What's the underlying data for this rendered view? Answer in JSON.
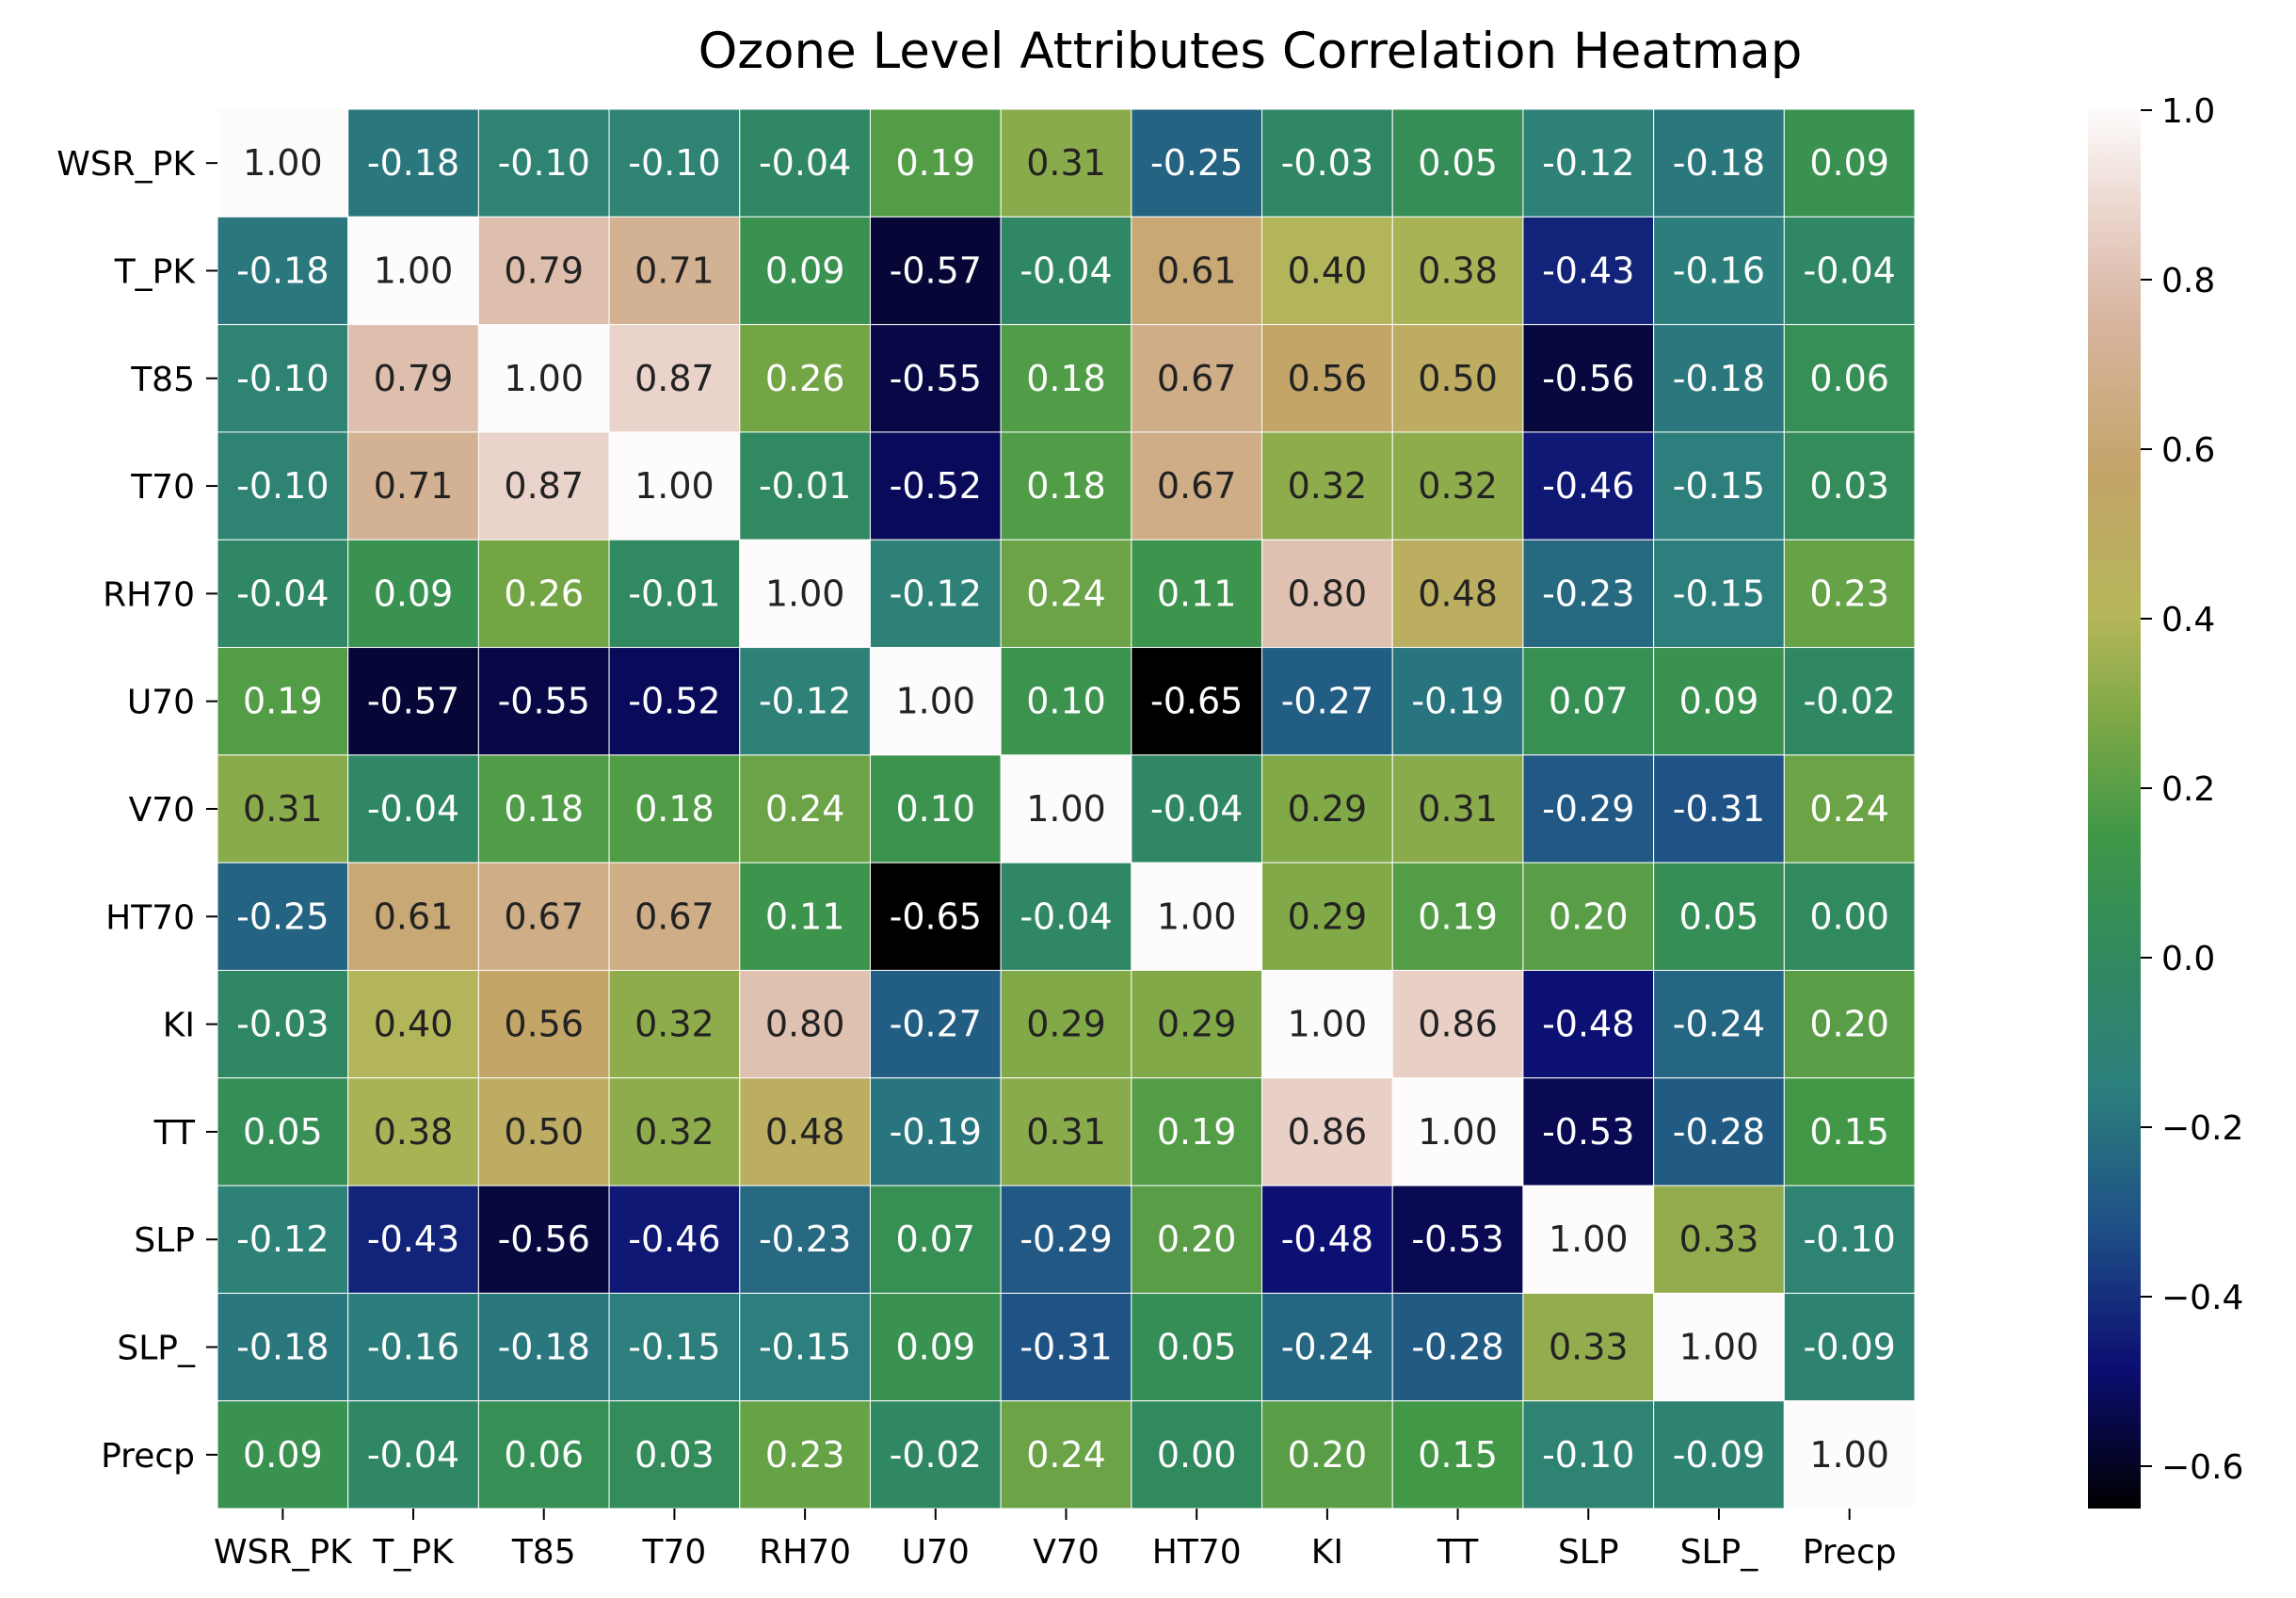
{
  "chart_data": {
    "type": "heatmap",
    "title": "Ozone Level Attributes Correlation Heatmap",
    "rows": [
      "WSR_PK",
      "T_PK",
      "T85",
      "T70",
      "RH70",
      "U70",
      "V70",
      "HT70",
      "KI",
      "TT",
      "SLP",
      "SLP_",
      "Precp"
    ],
    "columns": [
      "WSR_PK",
      "T_PK",
      "T85",
      "T70",
      "RH70",
      "U70",
      "V70",
      "HT70",
      "KI",
      "TT",
      "SLP",
      "SLP_",
      "Precp"
    ],
    "values": [
      [
        1.0,
        -0.18,
        -0.1,
        -0.1,
        -0.04,
        0.19,
        0.31,
        -0.25,
        -0.03,
        0.05,
        -0.12,
        -0.18,
        0.09
      ],
      [
        -0.18,
        1.0,
        0.79,
        0.71,
        0.09,
        -0.57,
        -0.04,
        0.61,
        0.4,
        0.38,
        -0.43,
        -0.16,
        -0.04
      ],
      [
        -0.1,
        0.79,
        1.0,
        0.87,
        0.26,
        -0.55,
        0.18,
        0.67,
        0.56,
        0.5,
        -0.56,
        -0.18,
        0.06
      ],
      [
        -0.1,
        0.71,
        0.87,
        1.0,
        -0.01,
        -0.52,
        0.18,
        0.67,
        0.32,
        0.32,
        -0.46,
        -0.15,
        0.03
      ],
      [
        -0.04,
        0.09,
        0.26,
        -0.01,
        1.0,
        -0.12,
        0.24,
        0.11,
        0.8,
        0.48,
        -0.23,
        -0.15,
        0.23
      ],
      [
        0.19,
        -0.57,
        -0.55,
        -0.52,
        -0.12,
        1.0,
        0.1,
        -0.65,
        -0.27,
        -0.19,
        0.07,
        0.09,
        -0.02
      ],
      [
        0.31,
        -0.04,
        0.18,
        0.18,
        0.24,
        0.1,
        1.0,
        -0.04,
        0.29,
        0.31,
        -0.29,
        -0.31,
        0.24
      ],
      [
        -0.25,
        0.61,
        0.67,
        0.67,
        0.11,
        -0.65,
        -0.04,
        1.0,
        0.29,
        0.19,
        0.2,
        0.05,
        -0.0
      ],
      [
        -0.03,
        0.4,
        0.56,
        0.32,
        0.8,
        -0.27,
        0.29,
        0.29,
        1.0,
        0.86,
        -0.48,
        -0.24,
        0.2
      ],
      [
        0.05,
        0.38,
        0.5,
        0.32,
        0.48,
        -0.19,
        0.31,
        0.19,
        0.86,
        1.0,
        -0.53,
        -0.28,
        0.15
      ],
      [
        -0.12,
        -0.43,
        -0.56,
        -0.46,
        -0.23,
        0.07,
        -0.29,
        0.2,
        -0.48,
        -0.53,
        1.0,
        0.33,
        -0.1
      ],
      [
        -0.18,
        -0.16,
        -0.18,
        -0.15,
        -0.15,
        0.09,
        -0.31,
        0.05,
        -0.24,
        -0.28,
        0.33,
        1.0,
        -0.09
      ],
      [
        0.09,
        -0.04,
        0.06,
        0.03,
        0.23,
        -0.02,
        0.24,
        -0.0,
        0.2,
        0.15,
        -0.1,
        -0.09,
        1.0
      ]
    ],
    "value_format": "2 decimals",
    "colormap": "gist_earth",
    "colormap_stops": [
      {
        "v": 0.0,
        "c": "#000000"
      },
      {
        "v": 0.1,
        "c": "#0c0e72"
      },
      {
        "v": 0.2,
        "c": "#1e4f86"
      },
      {
        "v": 0.3,
        "c": "#2c7f7d"
      },
      {
        "v": 0.4,
        "c": "#318a5c"
      },
      {
        "v": 0.48,
        "c": "#3f9748"
      },
      {
        "v": 0.56,
        "c": "#7aa745"
      },
      {
        "v": 0.64,
        "c": "#b5b65a"
      },
      {
        "v": 0.74,
        "c": "#c3a468"
      },
      {
        "v": 0.85,
        "c": "#d8b5a0"
      },
      {
        "v": 0.92,
        "c": "#e9d2c9"
      },
      {
        "v": 1.0,
        "c": "#fdfbfb"
      }
    ],
    "vmin": -0.65,
    "vmax": 1.0,
    "colorbar_ticks": [
      1.0,
      0.8,
      0.6,
      0.4,
      0.2,
      0.0,
      -0.2,
      -0.4,
      -0.6
    ],
    "colorbar_tick_labels": [
      "1.0",
      "0.8",
      "0.6",
      "0.4",
      "0.2",
      "0.0",
      "−0.2",
      "−0.4",
      "−0.6"
    ],
    "cell_border_color": "#ffffff",
    "annotation_dark_text_color": "#222222",
    "annotation_light_text_color": "#ffffff",
    "grid": false,
    "legend": "colorbar-right"
  }
}
